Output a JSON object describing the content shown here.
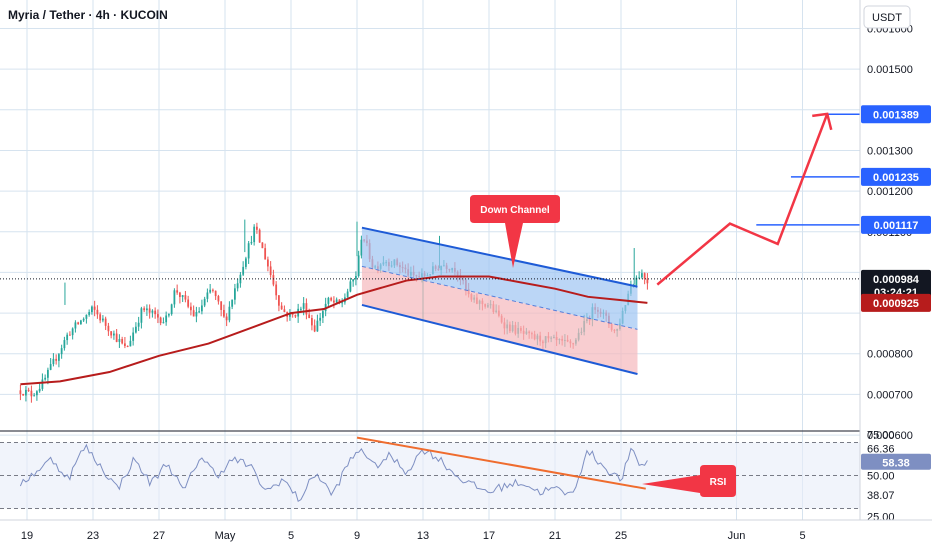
{
  "header": {
    "title": "Myria / Tether · 4h · KUCOIN",
    "currency": "USDT"
  },
  "colors": {
    "up": "#26a69a",
    "down": "#ef5350",
    "ma": "#b71c1c",
    "channel": "#1e5bd6",
    "channel_fill_top": "#9ec5f2",
    "channel_fill_bottom": "#f5b8bc",
    "rsi": "#7e8fc2",
    "arrow": "#f23645",
    "trendline": "#ef6c2e",
    "hline": "#2962ff",
    "grid": "#d6e3ef"
  },
  "annotations": {
    "channel_label": "Down Channel",
    "rsi_label": "RSI"
  },
  "chart_data": [
    {
      "type": "candlestick",
      "title": "Myria / Tether · 4h · KUCOIN",
      "y_axis_label": "USDT",
      "ylim": [
        0.00061,
        0.00167
      ],
      "ytick_labels": [
        "0.000600",
        "0.000700",
        "0.000800",
        "0.001100",
        "0.001200",
        "0.001300",
        "0.001500",
        "0.001600"
      ],
      "ytick_values": [
        0.0006,
        0.0007,
        0.0008,
        0.0011,
        0.0012,
        0.0013,
        0.0015,
        0.0016
      ],
      "xlim_day": [
        18.6,
        36.9
      ],
      "xtick_labels": [
        "19",
        "23",
        "27",
        "May",
        "5",
        "9",
        "13",
        "17",
        "21",
        "25",
        "Jun",
        "5"
      ],
      "xtick_values": [
        19,
        23,
        27,
        31,
        35,
        39,
        43,
        47,
        51,
        55,
        62,
        66
      ],
      "price_keypoints": {
        "day": [
          18.6,
          19.3,
          20,
          21.5,
          23,
          24.2,
          25,
          26,
          27.4,
          28,
          29.2,
          30.2,
          31,
          31.6,
          32.8,
          33.5,
          34.4,
          35,
          35.8,
          36.4,
          37.2,
          38,
          39,
          39.3,
          40,
          40.6,
          41.5,
          42.3,
          43,
          44.2,
          45,
          45.9,
          47,
          48,
          49.5,
          51,
          52,
          53.5,
          54.7,
          55.6,
          56.2,
          56.6
        ],
        "value": [
          0.00071,
          0.0007,
          0.00073,
          0.00085,
          0.00091,
          0.00085,
          0.00081,
          0.00091,
          0.00088,
          0.00096,
          0.00089,
          0.00096,
          0.00088,
          0.00096,
          0.00111,
          0.00103,
          0.00091,
          0.00089,
          0.00092,
          0.00086,
          0.00093,
          0.00092,
          0.001,
          0.0011,
          0.00101,
          0.00103,
          0.00102,
          0.00099,
          0.00099,
          0.00102,
          0.00101,
          0.00093,
          0.00092,
          0.00087,
          0.00084,
          0.00083,
          0.00082,
          0.00092,
          0.00085,
          0.00097,
          0.001,
          0.00098
        ]
      },
      "current_price": {
        "label": "0.000984",
        "value": 0.000984,
        "countdown": "03:24:21"
      },
      "moving_average": {
        "label": "0.000925",
        "value": 0.000925,
        "day": [
          18.6,
          21,
          24,
          27,
          30,
          33,
          35,
          37,
          39,
          42,
          44,
          47,
          49,
          51,
          53,
          55,
          56.6
        ],
        "values": [
          0.000725,
          0.000732,
          0.000755,
          0.000795,
          0.000825,
          0.00087,
          0.0009,
          0.00091,
          0.000945,
          0.00098,
          0.00099,
          0.00099,
          0.000975,
          0.00096,
          0.00094,
          0.000932,
          0.000925
        ]
      },
      "down_channel": {
        "label": "Down Channel",
        "upper": [
          {
            "day": 39.3,
            "value": 0.00111
          },
          {
            "day": 56.0,
            "value": 0.000965
          }
        ],
        "lower": [
          {
            "day": 39.3,
            "value": 0.00092
          },
          {
            "day": 56.0,
            "value": 0.00075
          }
        ],
        "mid": [
          {
            "day": 39.3,
            "value": 0.001015
          },
          {
            "day": 56.0,
            "value": 0.00086
          }
        ]
      },
      "targets": [
        {
          "label": "0.001389",
          "value": 0.001389,
          "from_day": 67.3
        },
        {
          "label": "0.001235",
          "value": 0.001235,
          "from_day": 65.3
        },
        {
          "label": "0.001117",
          "value": 0.001117,
          "from_day": 63.2
        }
      ],
      "projected_path": {
        "day": [
          57.2,
          61.6,
          64.5,
          67.5
        ],
        "value": [
          0.00097,
          0.00112,
          0.00107,
          0.00139
        ]
      }
    },
    {
      "type": "line",
      "title": "RSI",
      "ylim": [
        23,
        77
      ],
      "ytick_labels": [
        "75.00",
        "66.36",
        "58.38",
        "50.00",
        "38.07",
        "25.00"
      ],
      "ytick_values": [
        75,
        66.36,
        58.38,
        50,
        38.07,
        25
      ],
      "level_lines": [
        70,
        50,
        30
      ],
      "rsi_keypoints": {
        "day": [
          18.6,
          19.5,
          20.5,
          21.5,
          22.5,
          23.5,
          24.5,
          25.5,
          26.5,
          27.5,
          28.5,
          29.5,
          30.5,
          31.5,
          32.5,
          33.5,
          34.5,
          35.5,
          36.5,
          37.5,
          38.5,
          39.3,
          40,
          41,
          42,
          43,
          44,
          45,
          46,
          47,
          48,
          49,
          50,
          51,
          52,
          53,
          54,
          55,
          55.6,
          56.2,
          56.6
        ],
        "value": [
          45,
          52,
          60,
          48,
          68,
          55,
          42,
          60,
          45,
          58,
          40,
          62,
          50,
          60,
          56,
          40,
          48,
          35,
          52,
          38,
          58,
          67,
          55,
          62,
          52,
          66,
          60,
          50,
          44,
          40,
          44,
          46,
          40,
          42,
          38,
          65,
          55,
          47,
          65,
          56,
          58
        ]
      },
      "rsi_trendline": [
        {
          "day": 39.0,
          "value": 73
        },
        {
          "day": 56.5,
          "value": 42
        }
      ],
      "rsi_label": "RSI"
    }
  ]
}
